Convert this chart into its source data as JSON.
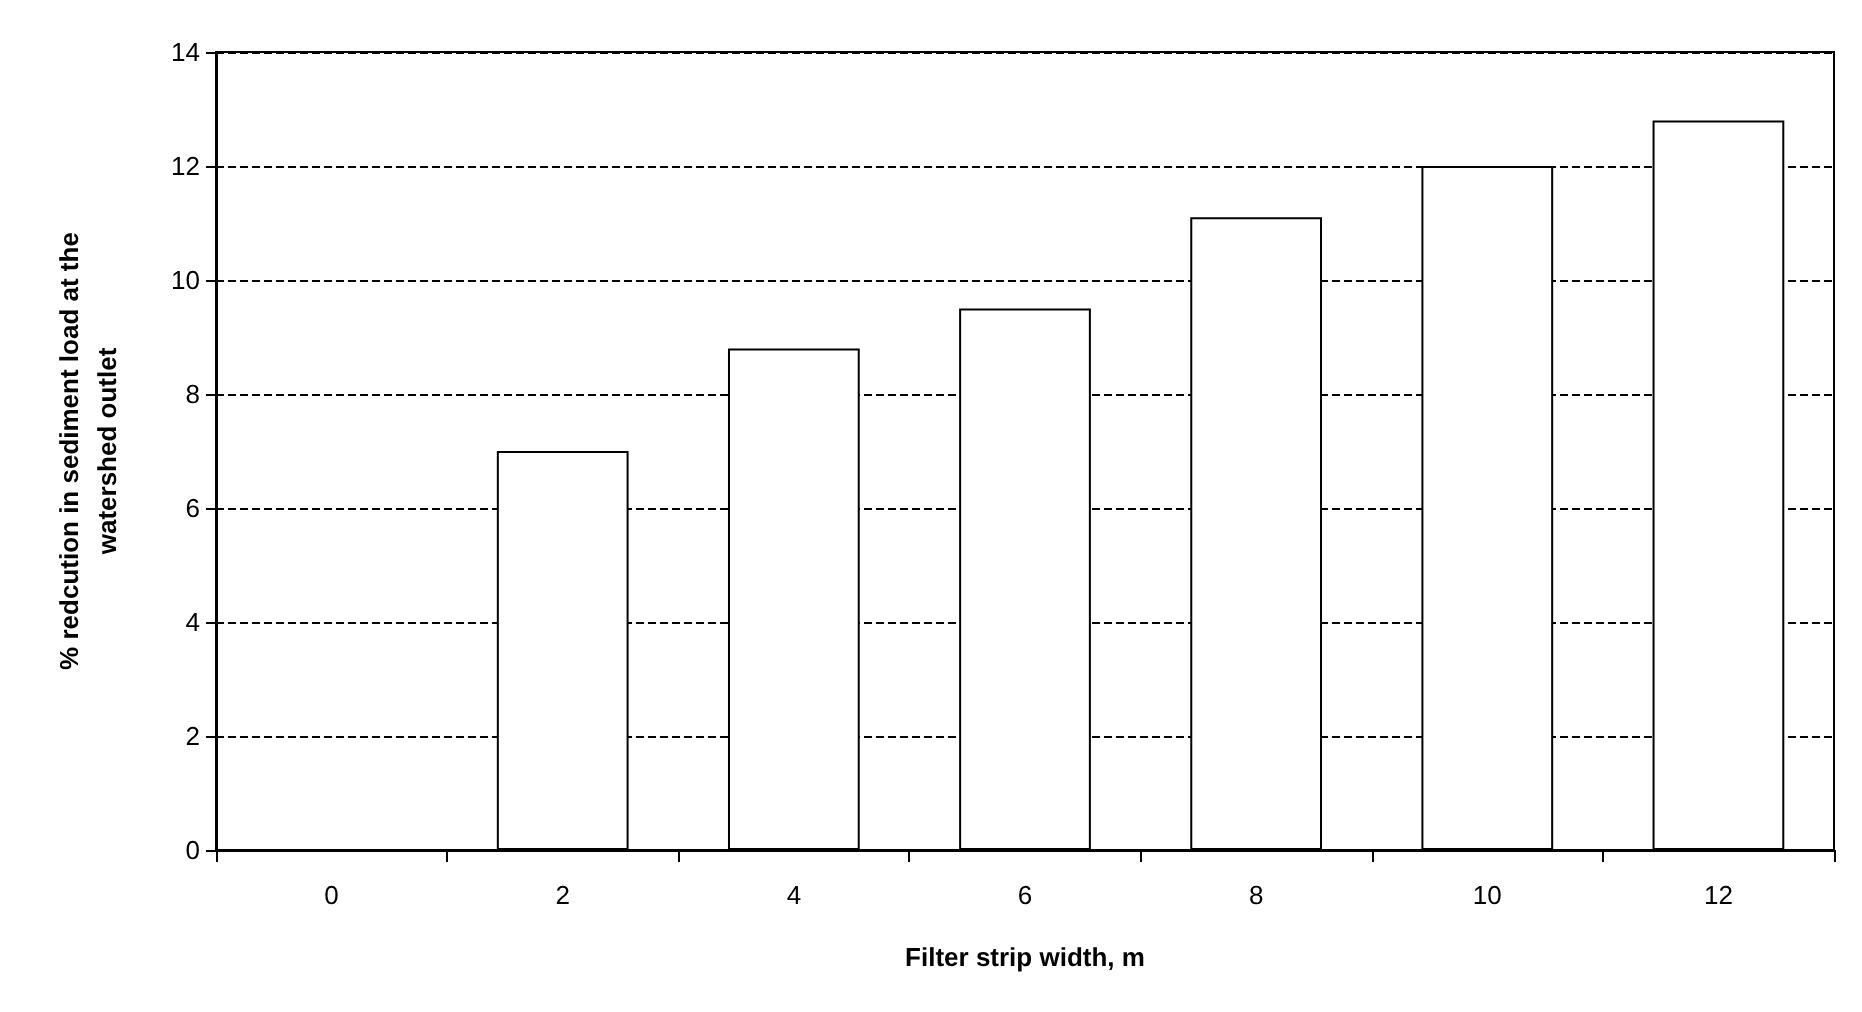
{
  "chart_data": {
    "type": "bar",
    "xlabel": "Filter strip width, m",
    "ylabel": "% redcution in sediment load at the watershed outlet",
    "categories": [
      "0",
      "2",
      "4",
      "6",
      "8",
      "10",
      "12"
    ],
    "values": [
      0,
      7.0,
      8.8,
      9.5,
      11.1,
      12.0,
      12.8
    ],
    "color": "#ffffff",
    "ylim": [
      0,
      14
    ],
    "yticks": [
      0,
      2,
      4,
      6,
      8,
      10,
      12,
      14
    ],
    "grid": "y"
  }
}
